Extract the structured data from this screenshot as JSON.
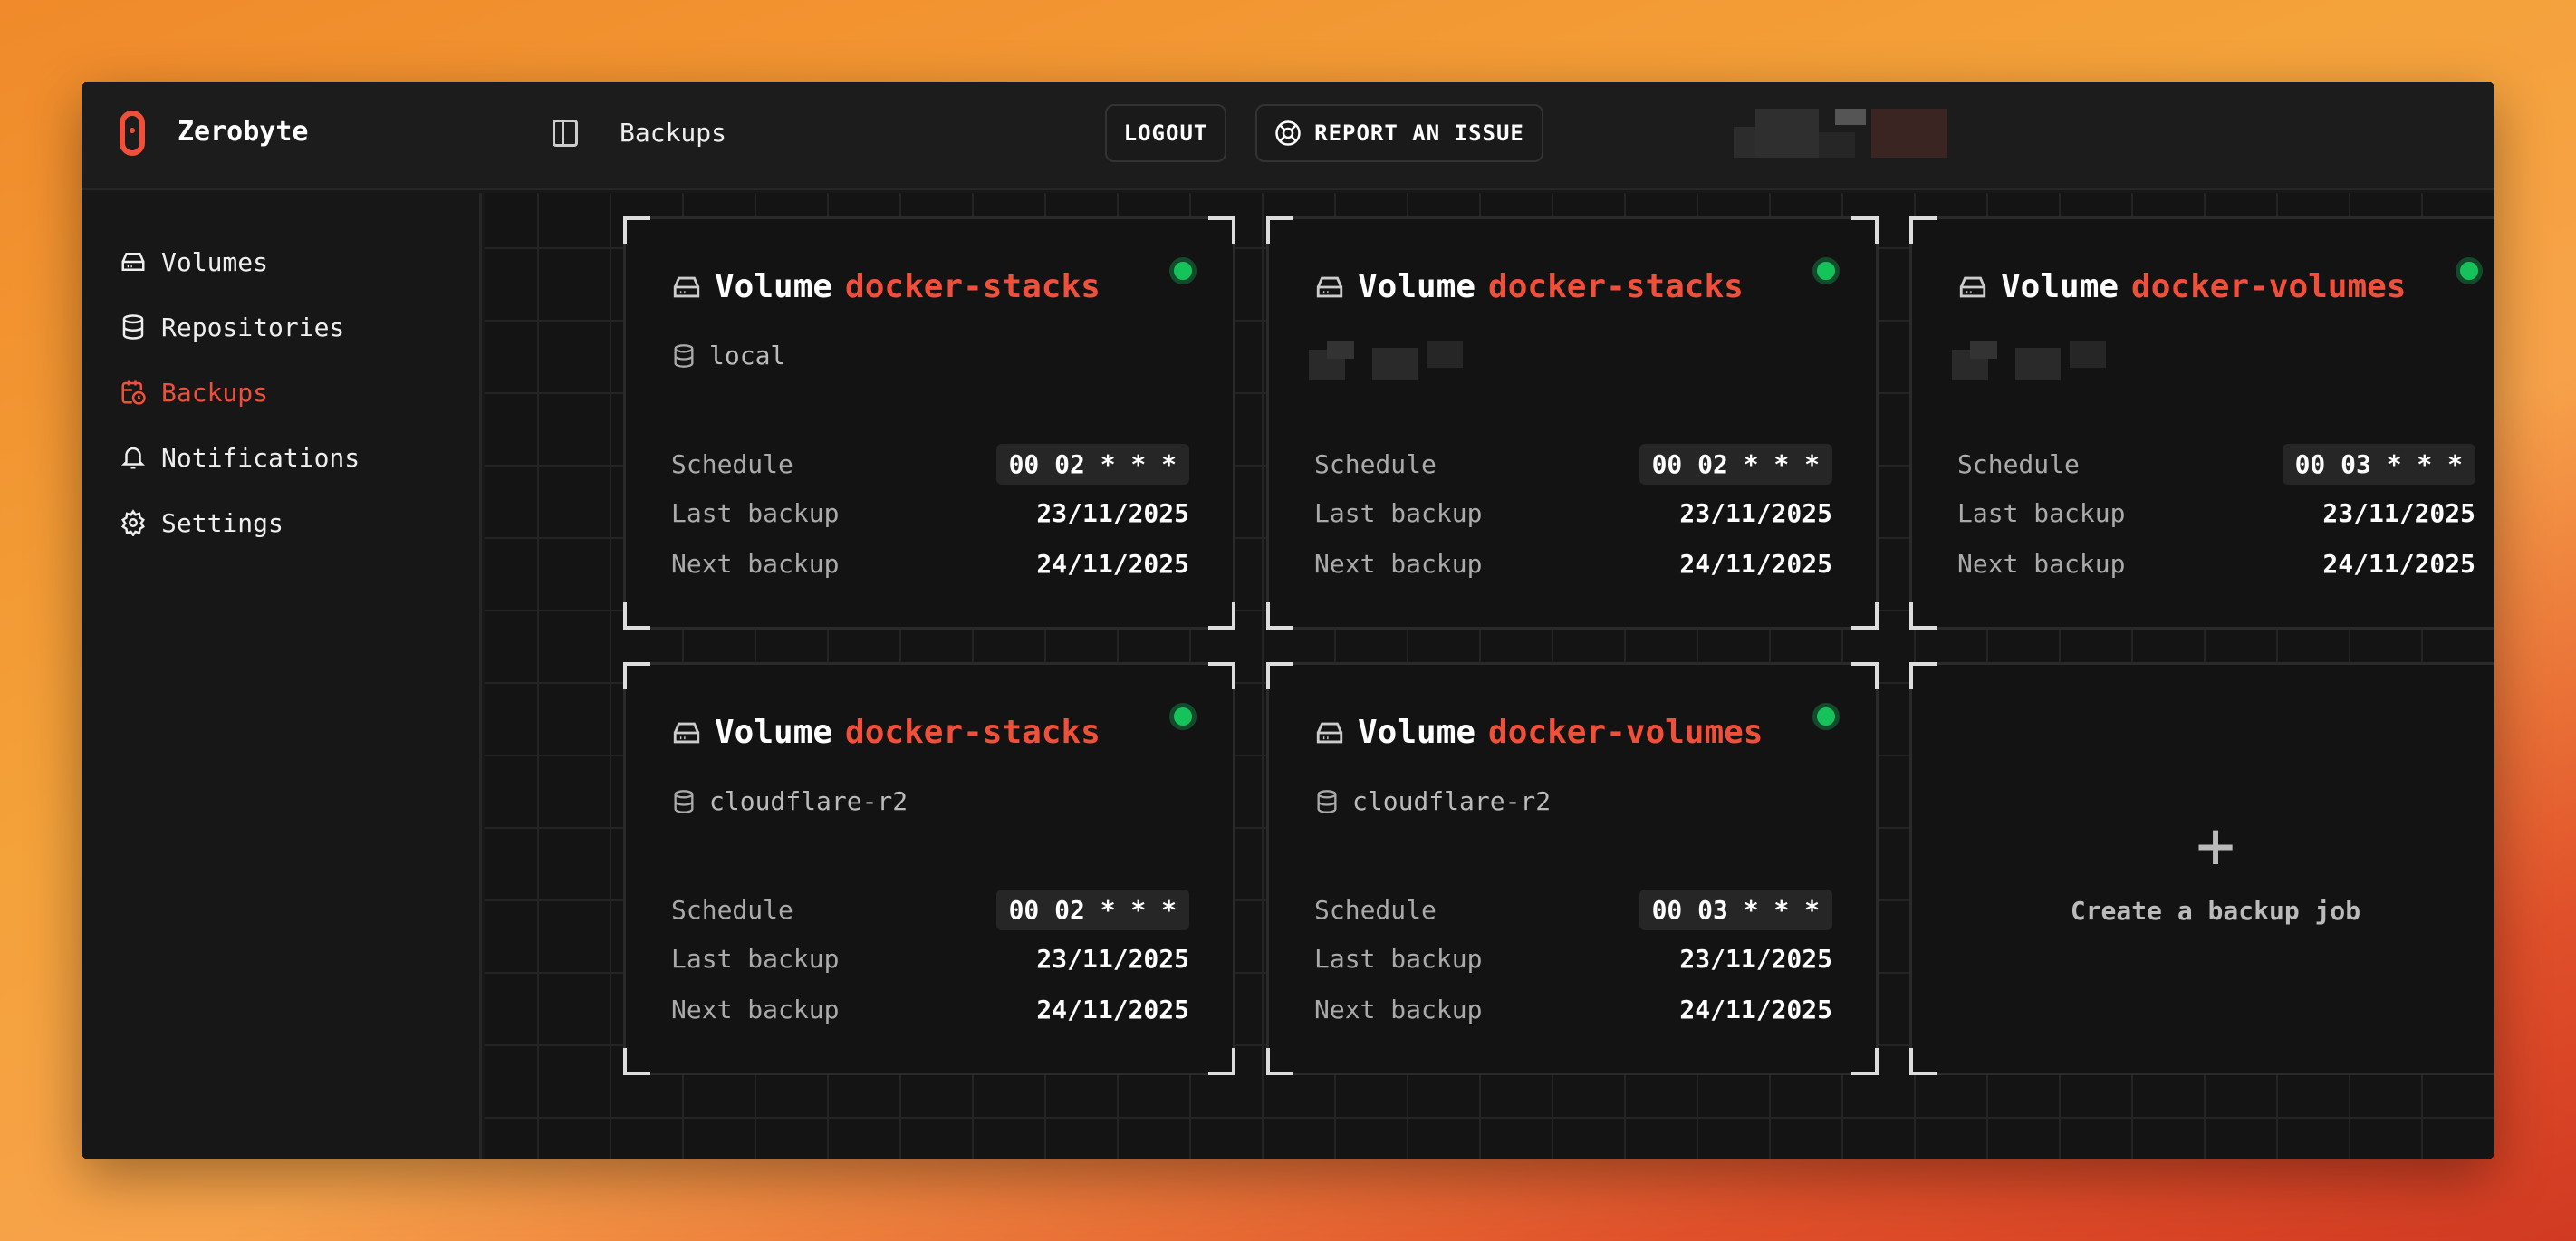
{
  "app": {
    "name": "Zerobyte"
  },
  "header": {
    "breadcrumb": "Backups",
    "logout": "LOGOUT",
    "report": "REPORT AN ISSUE"
  },
  "sidebar": {
    "items": [
      {
        "label": "Volumes",
        "icon": "hard-drive-icon",
        "active": false
      },
      {
        "label": "Repositories",
        "icon": "database-icon",
        "active": false
      },
      {
        "label": "Backups",
        "icon": "calendar-clock-icon",
        "active": true
      },
      {
        "label": "Notifications",
        "icon": "bell-icon",
        "active": false
      },
      {
        "label": "Settings",
        "icon": "gear-icon",
        "active": false
      }
    ]
  },
  "labels": {
    "volume": "Volume",
    "schedule": "Schedule",
    "last": "Last backup",
    "next": "Next backup",
    "create": "Create a backup job",
    "plus": "+"
  },
  "colors": {
    "accent": "#f0503a",
    "status_ok": "#16c35a"
  },
  "cards": [
    {
      "volume": "docker-stacks",
      "repository": "local",
      "schedule": "00 02 * * *",
      "last": "23/11/2025",
      "next": "24/11/2025",
      "status": "ok"
    },
    {
      "volume": "docker-stacks",
      "repository": "",
      "schedule": "00 02 * * *",
      "last": "23/11/2025",
      "next": "24/11/2025",
      "status": "ok"
    },
    {
      "volume": "docker-volumes",
      "repository": "",
      "schedule": "00 03 * * *",
      "last": "23/11/2025",
      "next": "24/11/2025",
      "status": "ok"
    },
    {
      "volume": "docker-stacks",
      "repository": "cloudflare-r2",
      "schedule": "00 02 * * *",
      "last": "23/11/2025",
      "next": "24/11/2025",
      "status": "ok"
    },
    {
      "volume": "docker-volumes",
      "repository": "cloudflare-r2",
      "schedule": "00 03 * * *",
      "last": "23/11/2025",
      "next": "24/11/2025",
      "status": "ok"
    }
  ]
}
